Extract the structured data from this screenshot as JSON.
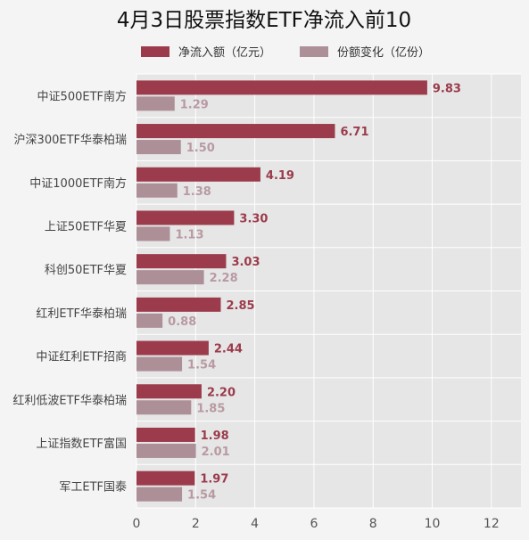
{
  "chart_data": {
    "type": "bar",
    "orientation": "horizontal",
    "title": "4月3日股票指数ETF净流入前10",
    "categories": [
      "中证500ETF南方",
      "沪深300ETF华泰柏瑞",
      "中证1000ETF南方",
      "上证50ETF华夏",
      "科创50ETF华夏",
      "红利ETF华泰柏瑞",
      "中证红利ETF招商",
      "红利低波ETF华泰柏瑞",
      "上证指数ETF富国",
      "军工ETF国泰"
    ],
    "series": [
      {
        "name": "净流入额（亿元）",
        "color": "#9b3b4b",
        "values": [
          9.83,
          6.71,
          4.19,
          3.3,
          3.03,
          2.85,
          2.44,
          2.2,
          1.98,
          1.97
        ],
        "labels": [
          "9.83",
          "6.71",
          "4.19",
          "3.30",
          "3.03",
          "2.85",
          "2.44",
          "2.20",
          "1.98",
          "1.97"
        ]
      },
      {
        "name": "份额变化（亿份）",
        "color": "#ad8f98",
        "values": [
          1.29,
          1.5,
          1.38,
          1.13,
          2.28,
          0.88,
          1.54,
          1.85,
          2.01,
          1.54
        ],
        "labels": [
          "1.29",
          "1.50",
          "1.38",
          "1.13",
          "2.28",
          "0.88",
          "1.54",
          "1.85",
          "2.01",
          "1.54"
        ]
      }
    ],
    "xlim": [
      0,
      13
    ],
    "xticks": [
      0,
      2,
      4,
      6,
      8,
      10,
      12
    ],
    "grid": true,
    "legend_position": "top"
  }
}
